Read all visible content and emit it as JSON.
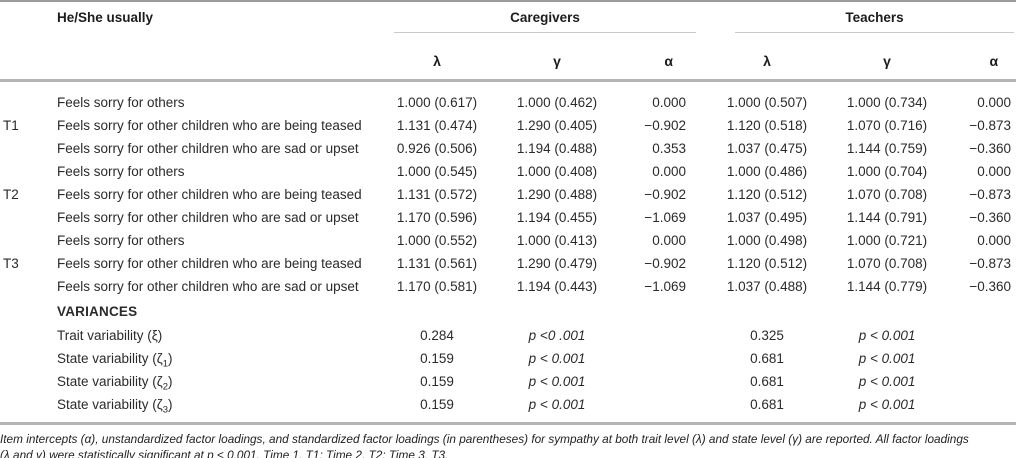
{
  "table": {
    "header": {
      "row_label": "He/She usually",
      "groups": [
        {
          "label": "Caregivers",
          "columns": [
            "λ",
            "γ",
            "α"
          ]
        },
        {
          "label": "Teachers",
          "columns": [
            "λ",
            "γ",
            "α"
          ]
        }
      ]
    },
    "rows": [
      {
        "time": "",
        "item": "Feels sorry for others",
        "caregivers": [
          "1.000 (0.617)",
          "1.000 (0.462)",
          "0.000"
        ],
        "teachers": [
          "1.000 (0.507)",
          "1.000 (0.734)",
          "0.000"
        ]
      },
      {
        "time": "T1",
        "item": "Feels sorry for other children who are being teased",
        "caregivers": [
          "1.131 (0.474)",
          "1.290 (0.405)",
          "−0.902"
        ],
        "teachers": [
          "1.120 (0.518)",
          "1.070 (0.716)",
          "−0.873"
        ]
      },
      {
        "time": "",
        "item": "Feels sorry for other children who are sad or upset",
        "caregivers": [
          "0.926 (0.506)",
          "1.194 (0.488)",
          "0.353"
        ],
        "teachers": [
          "1.037 (0.475)",
          "1.144 (0.759)",
          "−0.360"
        ]
      },
      {
        "time": "",
        "item": "Feels sorry for others",
        "caregivers": [
          "1.000 (0.545)",
          "1.000 (0.408)",
          "0.000"
        ],
        "teachers": [
          "1.000 (0.486)",
          "1.000 (0.704)",
          "0.000"
        ]
      },
      {
        "time": "T2",
        "item": "Feels sorry for other children who are being teased",
        "caregivers": [
          "1.131 (0.572)",
          "1.290 (0.488)",
          "−0.902"
        ],
        "teachers": [
          "1.120 (0.512)",
          "1.070 (0.708)",
          "−0.873"
        ]
      },
      {
        "time": "",
        "item": "Feels sorry for other children who are sad or upset",
        "caregivers": [
          "1.170 (0.596)",
          "1.194 (0.455)",
          "−1.069"
        ],
        "teachers": [
          "1.037 (0.495)",
          "1.144 (0.791)",
          "−0.360"
        ]
      },
      {
        "time": "",
        "item": "Feels sorry for others",
        "caregivers": [
          "1.000 (0.552)",
          "1.000 (0.413)",
          "0.000"
        ],
        "teachers": [
          "1.000 (0.498)",
          "1.000 (0.721)",
          "0.000"
        ]
      },
      {
        "time": "T3",
        "item": "Feels sorry for other children who are being teased",
        "caregivers": [
          "1.131 (0.561)",
          "1.290 (0.479)",
          "−0.902"
        ],
        "teachers": [
          "1.120 (0.512)",
          "1.070 (0.708)",
          "−0.873"
        ]
      },
      {
        "time": "",
        "item": "Feels sorry for other children who are sad or upset",
        "caregivers": [
          "1.170 (0.581)",
          "1.194 (0.443)",
          "−1.069"
        ],
        "teachers": [
          "1.037 (0.488)",
          "1.144 (0.779)",
          "−0.360"
        ]
      }
    ],
    "variances": {
      "section_label": "VARIANCES",
      "rows": [
        {
          "label": {
            "pre": "Trait variability (ξ)",
            "sub": "",
            "post": ""
          },
          "caregivers_value": "0.284",
          "caregivers_p": "p <0 .001",
          "teachers_value": "0.325",
          "teachers_p": "p < 0.001"
        },
        {
          "label": {
            "pre": "State variability (ζ",
            "sub": "1",
            "post": ")"
          },
          "caregivers_value": "0.159",
          "caregivers_p": "p < 0.001",
          "teachers_value": "0.681",
          "teachers_p": "p < 0.001"
        },
        {
          "label": {
            "pre": "State variability (ζ",
            "sub": "2",
            "post": ")"
          },
          "caregivers_value": "0.159",
          "caregivers_p": "p < 0.001",
          "teachers_value": "0.681",
          "teachers_p": "p < 0.001"
        },
        {
          "label": {
            "pre": "State variability (ζ",
            "sub": "3",
            "post": ")"
          },
          "caregivers_value": "0.159",
          "caregivers_p": "p < 0.001",
          "teachers_value": "0.681",
          "teachers_p": "p < 0.001"
        }
      ]
    }
  },
  "footnote": {
    "line1": "Item intercepts (α), unstandardized factor loadings, and standardized factor loadings (in parentheses) for sympathy at both trait level (λ) and state level (γ) are reported. All factor loadings",
    "line2": "(λ and γ) were statistically significant at p < 0.001. Time 1, T1; Time 2, T2; Time 3, T3."
  }
}
